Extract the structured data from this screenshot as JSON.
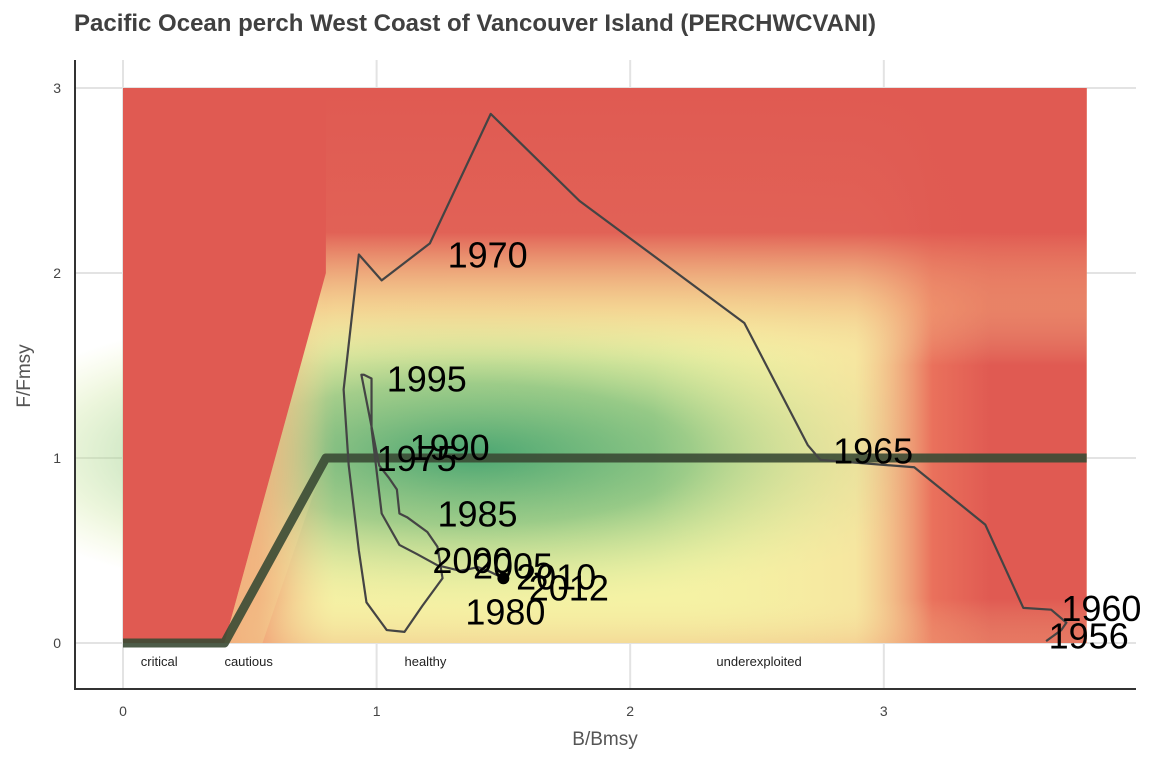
{
  "title": "Pacific Ocean perch West Coast of Vancouver Island (PERCHWCVANI)",
  "colors": {
    "red": "#e05a52",
    "yellow": "#f5f2a4",
    "green": "#2f9a6a",
    "hcr": "#3a4a34",
    "trajectory": "#444444"
  },
  "chart_data": {
    "type": "line",
    "title": "Pacific Ocean perch West Coast of Vancouver Island (PERCHWCVANI)",
    "xlabel": "B/Bmsy",
    "ylabel": "F/Fmsy",
    "xlim": [
      -0.19,
      4.05
    ],
    "ylim": [
      -0.25,
      3.15
    ],
    "xticks": [
      0,
      1,
      2,
      3
    ],
    "yticks": [
      0,
      1,
      2,
      3
    ],
    "grid": true,
    "zones": [
      {
        "label": "critical",
        "x": 0.07
      },
      {
        "label": "cautious",
        "x": 0.4
      },
      {
        "label": "healthy",
        "x": 1.11
      },
      {
        "label": "underexploited",
        "x": 2.34
      }
    ],
    "harvest_control_rule": {
      "x": [
        0,
        0.4,
        0.8,
        3.8
      ],
      "y": [
        0,
        0,
        1,
        1
      ]
    },
    "trajectory": {
      "x": [
        3.64,
        3.7,
        3.72,
        3.66,
        3.55,
        3.4,
        3.12,
        2.75,
        2.7,
        2.45,
        1.8,
        1.45,
        1.21,
        1.02,
        0.93,
        0.87,
        0.89,
        0.93,
        0.96,
        1.04,
        1.11,
        1.18,
        1.26,
        1.24,
        1.2,
        1.12,
        1.09,
        1.08,
        1.05,
        1.01,
        0.99,
        0.94,
        0.95,
        0.98,
        0.98,
        1.02,
        1.09,
        1.16,
        1.24,
        1.33,
        1.4,
        1.44,
        1.5
      ],
      "y": [
        0.01,
        0.07,
        0.11,
        0.18,
        0.19,
        0.64,
        0.95,
        0.99,
        1.07,
        1.73,
        2.39,
        2.86,
        2.16,
        1.96,
        2.1,
        1.37,
        0.96,
        0.5,
        0.22,
        0.07,
        0.06,
        0.2,
        0.35,
        0.52,
        0.6,
        0.68,
        0.7,
        0.83,
        0.89,
        0.96,
        1.1,
        1.45,
        1.45,
        1.43,
        1.16,
        0.7,
        0.53,
        0.48,
        0.42,
        0.39,
        0.41,
        0.39,
        0.35
      ]
    },
    "current_point": {
      "x": 1.5,
      "y": 0.35
    },
    "year_labels": [
      {
        "label": "1956",
        "x": 3.65,
        "y": 0.04
      },
      {
        "label": "1960",
        "x": 3.7,
        "y": 0.19
      },
      {
        "label": "1965",
        "x": 2.8,
        "y": 1.04
      },
      {
        "label": "1970",
        "x": 1.28,
        "y": 2.1
      },
      {
        "label": "1975",
        "x": 1.0,
        "y": 1.0
      },
      {
        "label": "1980",
        "x": 1.35,
        "y": 0.17
      },
      {
        "label": "1985",
        "x": 1.24,
        "y": 0.7
      },
      {
        "label": "1990",
        "x": 1.13,
        "y": 1.06
      },
      {
        "label": "1995",
        "x": 1.04,
        "y": 1.43
      },
      {
        "label": "2000",
        "x": 1.22,
        "y": 0.45
      },
      {
        "label": "2005",
        "x": 1.38,
        "y": 0.42
      },
      {
        "label": "2010",
        "x": 1.55,
        "y": 0.36
      },
      {
        "label": "2012",
        "x": 1.6,
        "y": 0.3
      }
    ]
  }
}
